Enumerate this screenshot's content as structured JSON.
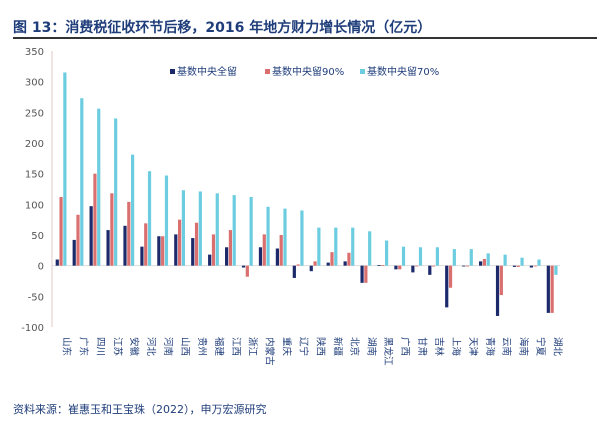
{
  "title": "图 13：消费税征收环节后移，2016 年地方财力增长情况（亿元）",
  "source": "资料来源：崔惠玉和王宝珠（2022），申万宏源研究",
  "chart_data": {
    "type": "bar",
    "title": "图 13：消费税征收环节后移，2016 年地方财力增长情况（亿元）",
    "ylim": [
      -100,
      350
    ],
    "yticks": [
      -100,
      -50,
      0,
      50,
      100,
      150,
      200,
      250,
      300,
      350
    ],
    "grid": false,
    "legend_position": "top",
    "categories": [
      "山东",
      "广东",
      "四川",
      "江苏",
      "安徽",
      "河北",
      "河南",
      "山西",
      "贵州",
      "福建",
      "江西",
      "浙江",
      "内蒙古",
      "重庆",
      "辽宁",
      "陕西",
      "新疆",
      "北京",
      "湖南",
      "黑龙江",
      "广西",
      "甘肃",
      "吉林",
      "上海",
      "天津",
      "青海",
      "云南",
      "海南",
      "宁夏",
      "湖北"
    ],
    "series": [
      {
        "name": "基数中央全留",
        "color": "#1c2a6b",
        "values": [
          10,
          42,
          97,
          58,
          65,
          31,
          48,
          51,
          45,
          18,
          30,
          -3,
          30,
          28,
          -20,
          -9,
          5,
          7,
          -28,
          1,
          -6,
          -11,
          -15,
          -68,
          -1,
          7,
          -82,
          -2,
          -3,
          -77
        ]
      },
      {
        "name": "基数中央留90%",
        "color": "#d9706f",
        "values": [
          112,
          83,
          150,
          118,
          104,
          69,
          48,
          75,
          70,
          51,
          58,
          -18,
          51,
          50,
          2,
          7,
          22,
          21,
          -28,
          1,
          -6,
          0,
          -1,
          -36,
          -1,
          11,
          -48,
          -2,
          -1,
          -77
        ]
      },
      {
        "name": "基数中央留70%",
        "color": "#6ccde0",
        "values": [
          315,
          273,
          256,
          240,
          181,
          154,
          147,
          123,
          121,
          118,
          115,
          112,
          96,
          93,
          90,
          62,
          62,
          62,
          56,
          41,
          31,
          30,
          30,
          27,
          27,
          20,
          18,
          13,
          10,
          -15
        ]
      }
    ]
  }
}
